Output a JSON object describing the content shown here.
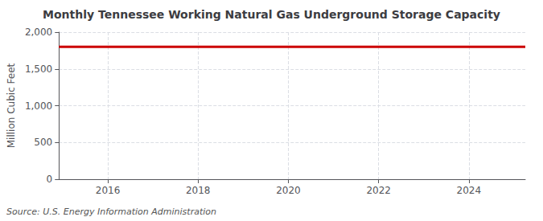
{
  "chart_data": {
    "type": "line",
    "title": "Monthly Tennessee Working Natural Gas Underground Storage Capacity",
    "ylabel": "Million Cubic Feet",
    "annotation": "Source: U.S. Energy Information Administration",
    "x": [
      2014.917,
      2025.25
    ],
    "values": [
      1800,
      1800
    ],
    "color": "#cc0000",
    "xlim": [
      2014.917,
      2025.25
    ],
    "xticks": [
      2016,
      2018,
      2020,
      2022,
      2024
    ],
    "ylim": [
      0,
      2000
    ],
    "yticks": [
      0,
      500,
      {
        "value": 1000,
        "label": "1,000"
      },
      {
        "value": 1500,
        "label": "1,500"
      },
      {
        "value": 2000,
        "label": "2,000"
      }
    ],
    "grid": true
  }
}
